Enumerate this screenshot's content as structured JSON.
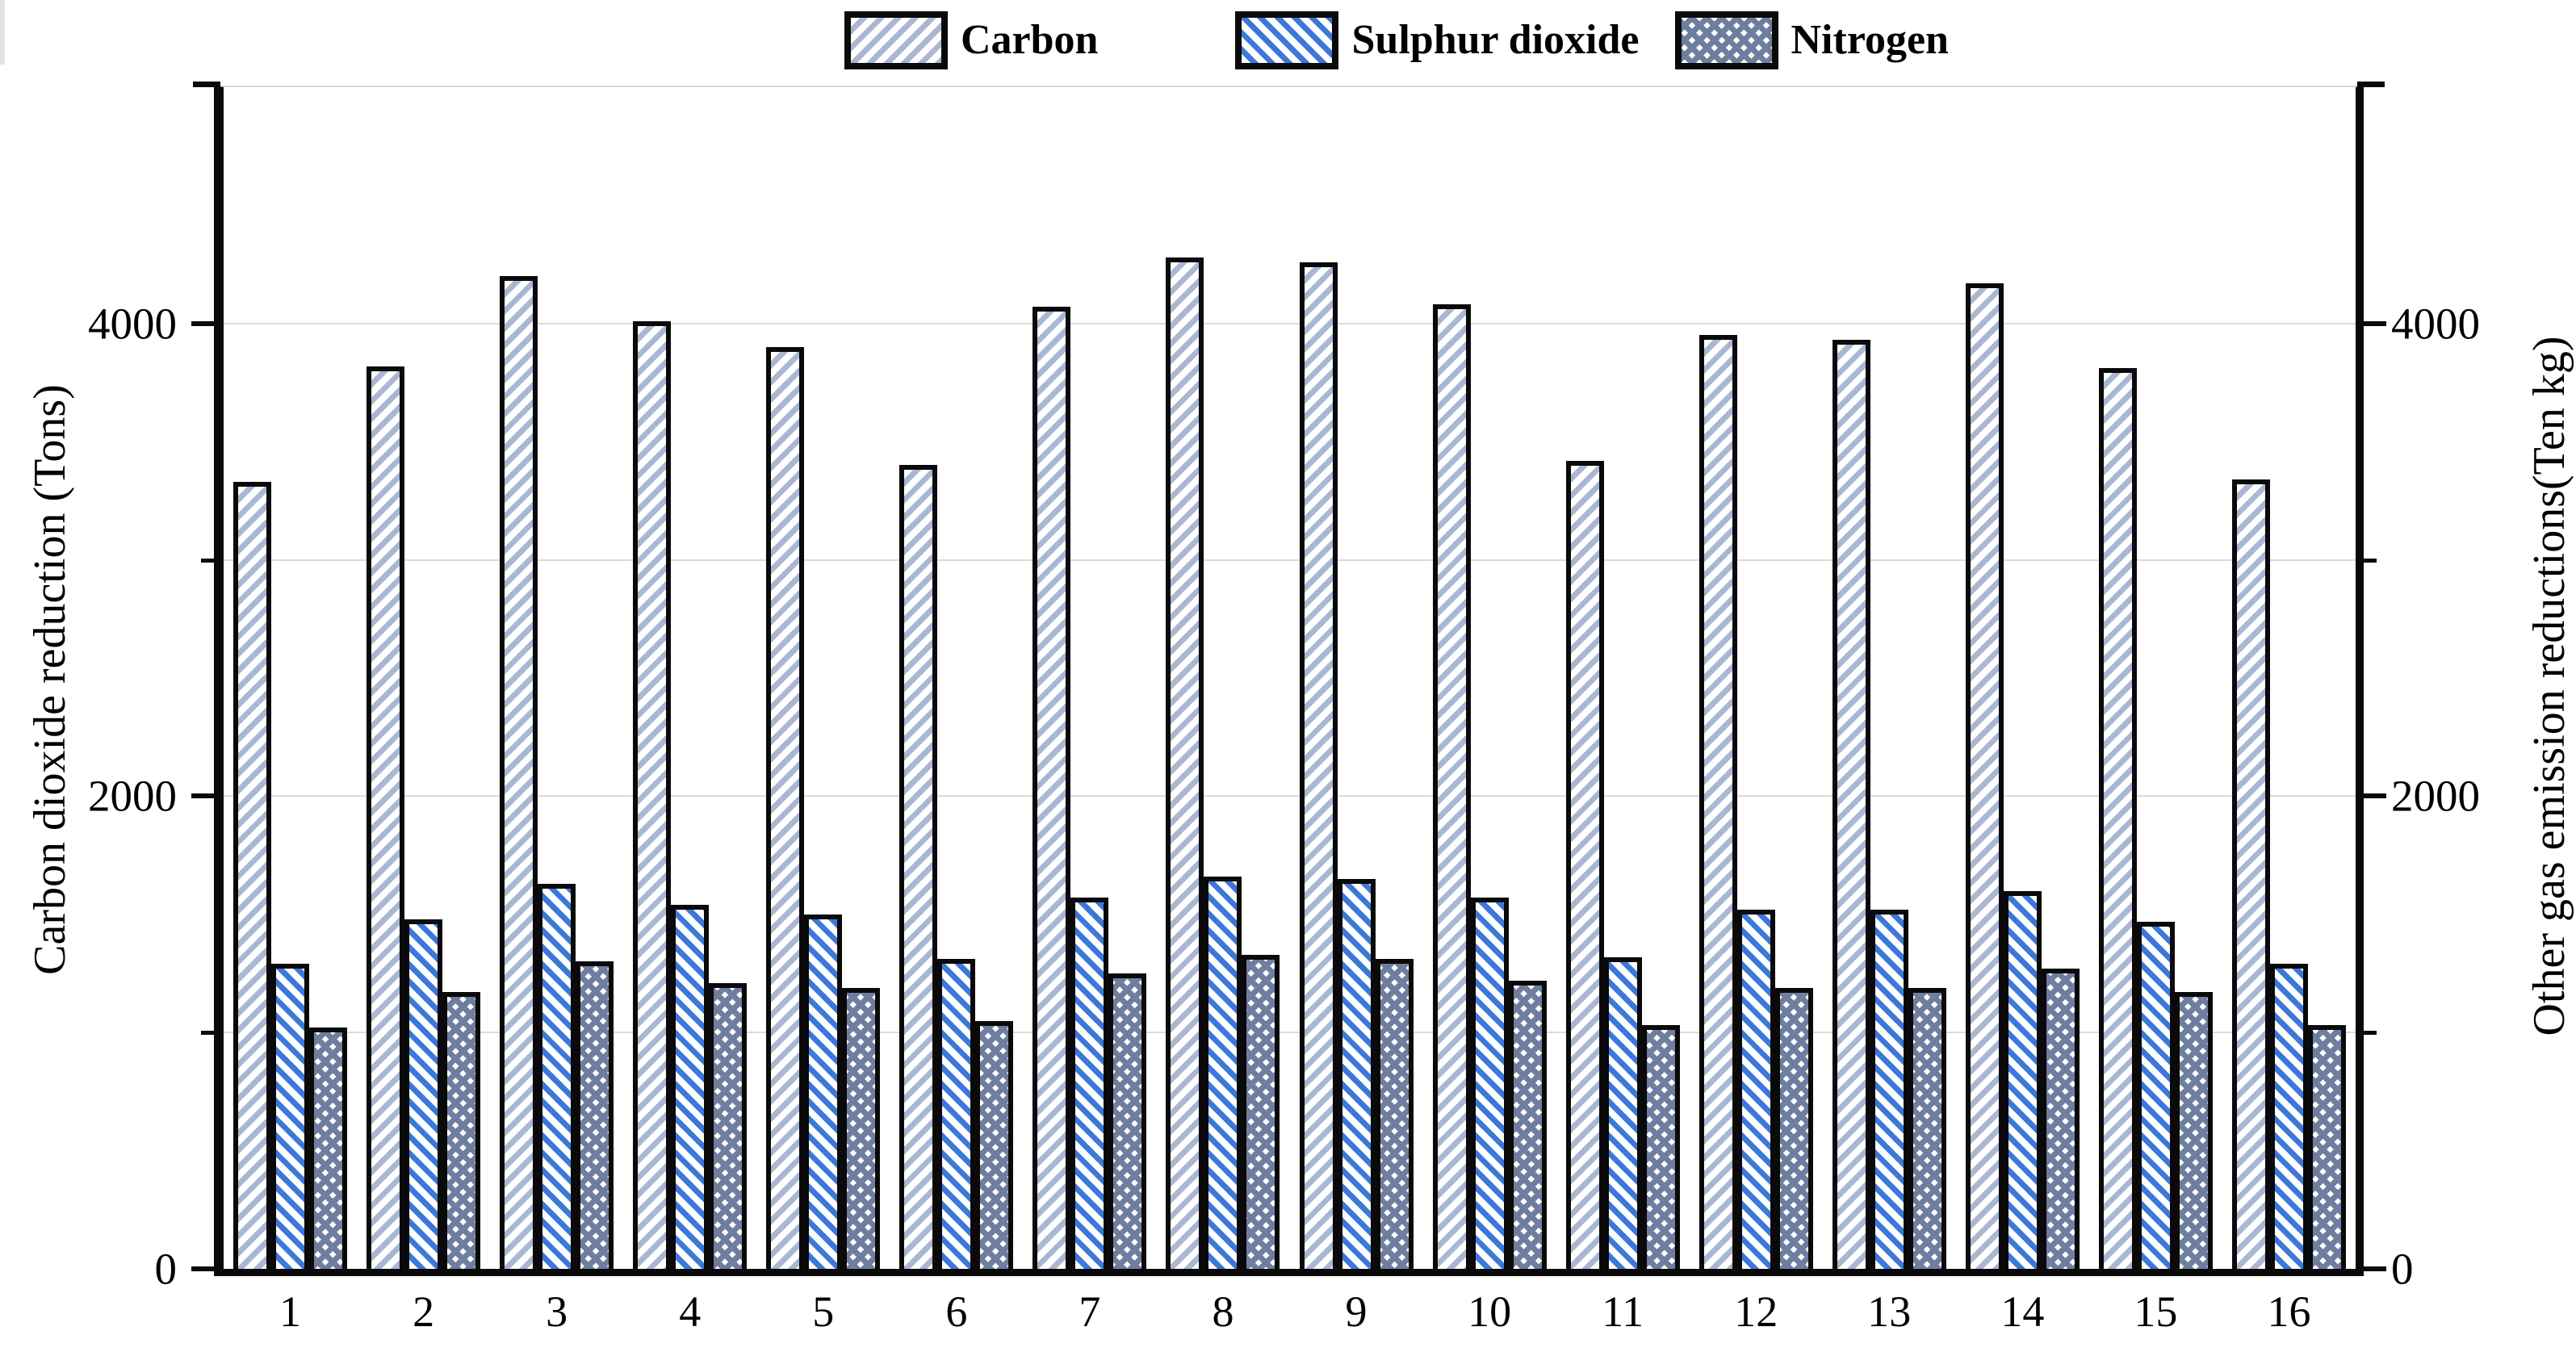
{
  "figure": {
    "background": "#ffffff",
    "frame_color": "#0a0a0a",
    "grid_color": "#dadada"
  },
  "legend": {
    "position": "top-center",
    "items": [
      {
        "label": "Carbon",
        "pattern": "diagonal-up-hatch",
        "color": "#a9b7d2"
      },
      {
        "label": "Sulphur dioxide",
        "pattern": "diagonal-down-hatch",
        "color": "#3c78da"
      },
      {
        "label": "Nitrogen",
        "pattern": "diamond-crosshatch",
        "color": "#6e7e9f"
      }
    ]
  },
  "chart_data": {
    "type": "bar",
    "categories": [
      "1",
      "2",
      "3",
      "4",
      "5",
      "6",
      "7",
      "8",
      "9",
      "10",
      "11",
      "12",
      "13",
      "14",
      "15",
      "16"
    ],
    "series": [
      {
        "name": "Carbon",
        "axis": "left",
        "color": "#a9b7d2",
        "pattern": "diagonal-up-hatch",
        "values": [
          3330,
          3820,
          4200,
          4010,
          3900,
          3400,
          4070,
          4280,
          4260,
          4080,
          3420,
          3950,
          3930,
          4170,
          3810,
          3340
        ]
      },
      {
        "name": "Sulphur dioxide",
        "axis": "right",
        "color": "#3c78da",
        "pattern": "diagonal-down-hatch",
        "values": [
          1290,
          1480,
          1630,
          1540,
          1500,
          1310,
          1570,
          1660,
          1650,
          1570,
          1320,
          1520,
          1520,
          1600,
          1470,
          1290
        ]
      },
      {
        "name": "Nitrogen",
        "axis": "right",
        "color": "#6e7e9f",
        "pattern": "diamond-crosshatch",
        "values": [
          1020,
          1170,
          1300,
          1210,
          1190,
          1050,
          1250,
          1330,
          1310,
          1220,
          1030,
          1190,
          1190,
          1270,
          1170,
          1030
        ]
      }
    ],
    "title": "",
    "xlabel": "",
    "ylabel_left": "Carbon dioxide reduction (Tons)",
    "ylabel_right": "Other gas emission reductions(Ten kg)",
    "ylim": [
      0,
      5000
    ],
    "yticks_major": [
      0,
      2000,
      4000
    ],
    "yticks_minor": [
      1000,
      3000
    ],
    "gridlines": [
      1000,
      2000,
      3000,
      4000
    ],
    "grid_on": true,
    "legend_position": "top-center"
  }
}
